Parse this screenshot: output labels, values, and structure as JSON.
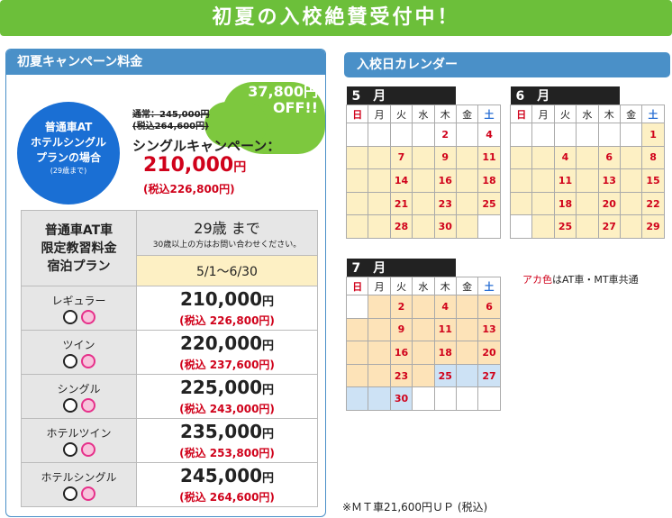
{
  "banner": {
    "title": "初夏の入校絶賛受付中！"
  },
  "left": {
    "header": "初夏キャンペーン料金",
    "circle": {
      "line1": "普通車AT",
      "line2": "ホテルシングル",
      "line3": "プランの場合",
      "note": "(29歳まで)"
    },
    "off": {
      "amount": "37,800円",
      "label": "OFF!!"
    },
    "normal": {
      "line1": "通常：245,000円",
      "line2": "(税込264,600円)"
    },
    "campaign": {
      "label": "シングルキャンペーン：",
      "price": "210,000",
      "yen": "円",
      "tax": "(税込226,800円)"
    },
    "table": {
      "header_left": [
        "普通車AT車",
        "限定教習料金",
        "宿泊プラン"
      ],
      "age": "29歳 まで",
      "age_note": "30歳以上の方はお問い合わせください。",
      "period": "5/1～6/30",
      "yen": "円",
      "rows": [
        {
          "name": "レギュラー",
          "price": "210,000",
          "tax": "(税込 226,800円)"
        },
        {
          "name": "ツイン",
          "price": "220,000",
          "tax": "(税込 237,600円)"
        },
        {
          "name": "シングル",
          "price": "225,000",
          "tax": "(税込 243,000円)"
        },
        {
          "name": "ホテルツイン",
          "price": "235,000",
          "tax": "(税込 253,800円)"
        },
        {
          "name": "ホテルシングル",
          "price": "245,000",
          "tax": "(税込 264,600円)"
        }
      ]
    }
  },
  "right": {
    "header": "入校日カレンダー",
    "dow": [
      "日",
      "月",
      "火",
      "水",
      "木",
      "金",
      "土"
    ],
    "may": {
      "title": "5　月"
    },
    "june": {
      "title": "6　月"
    },
    "july": {
      "title": "7　月"
    },
    "legend_red": "アカ色",
    "legend_rest": "はAT車・MT車共通",
    "footnote": "※ＭＴ車21,600円ＵＰ (税込)"
  },
  "colors": {
    "banner": "#6cbf3a",
    "panel": "#4a90c8",
    "accent_red": "#d0021b",
    "circle": "#1a6fd4"
  }
}
